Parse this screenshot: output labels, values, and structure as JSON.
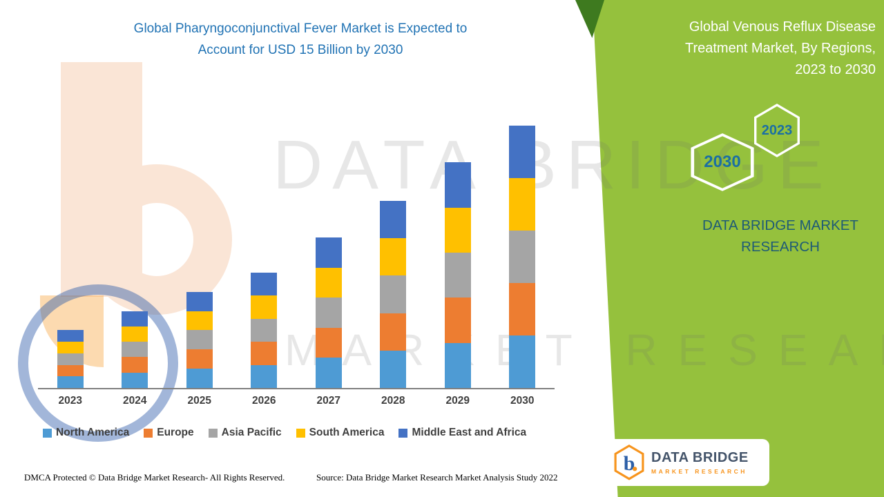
{
  "left_title": {
    "line1": "Global Pharyngoconjunctival Fever Market is Expected to",
    "line2": "Account for USD 15 Billion by 2030"
  },
  "right_panel": {
    "title_line1": "Global Venous Reflux Disease",
    "title_line2": "Treatment Market, By Regions,",
    "title_line3": "2023 to 2030",
    "hexagon_small": "2023",
    "hexagon_large": "2030",
    "brand_line1": "DATA BRIDGE MARKET",
    "brand_line2": "RESEARCH",
    "background_color": "#95C13D",
    "accent_color": "#3E7A1F",
    "year_text_color": "#1B6FA3",
    "brand_text_color": "#1E5B76"
  },
  "watermark": {
    "line1": "DATA BRIDGE",
    "line2": "MARKET RESEARCH"
  },
  "chart_data": {
    "type": "bar",
    "stacked": true,
    "title": "Global Pharyngoconjunctival Fever Market is Expected to Account for USD 15 Billion by 2030",
    "xlabel": "",
    "ylabel": "",
    "unit": "USD Billion",
    "ylim": [
      0,
      15
    ],
    "grid": false,
    "legend_position": "bottom",
    "categories": [
      "2023",
      "2024",
      "2025",
      "2026",
      "2027",
      "2028",
      "2029",
      "2030"
    ],
    "series": [
      {
        "name": "North America",
        "color": "#4E9BD4",
        "values": [
          0.66,
          0.88,
          1.1,
          1.32,
          1.72,
          2.14,
          2.58,
          3.0
        ]
      },
      {
        "name": "Europe",
        "color": "#ED7D31",
        "values": [
          0.66,
          0.88,
          1.1,
          1.32,
          1.72,
          2.14,
          2.58,
          3.0
        ]
      },
      {
        "name": "Asia Pacific",
        "color": "#A5A5A5",
        "values": [
          0.66,
          0.88,
          1.1,
          1.32,
          1.72,
          2.14,
          2.58,
          3.0
        ]
      },
      {
        "name": "South America",
        "color": "#FFC000",
        "values": [
          0.66,
          0.88,
          1.1,
          1.32,
          1.72,
          2.14,
          2.58,
          3.0
        ]
      },
      {
        "name": "Middle East and Africa",
        "color": "#4472C4",
        "values": [
          0.66,
          0.88,
          1.1,
          1.32,
          1.72,
          2.14,
          2.58,
          3.0
        ]
      }
    ],
    "totals": [
      3.3,
      4.4,
      5.5,
      6.6,
      8.6,
      10.7,
      12.9,
      15.0
    ]
  },
  "footer": {
    "dmca": "DMCA Protected © Data Bridge Market Research- All Rights Reserved.",
    "source": "Source: Data Bridge Market Research Market Analysis Study 2022"
  },
  "logo": {
    "letter": "b",
    "name": "DATA BRIDGE",
    "tagline": "MARKET RESEARCH",
    "accent_orange": "#F7941D",
    "accent_blue": "#2B5EA7"
  },
  "colors": {
    "title_blue": "#2173B4",
    "axis_gray": "#7F7F7F",
    "label_gray": "#3F3F3F"
  }
}
